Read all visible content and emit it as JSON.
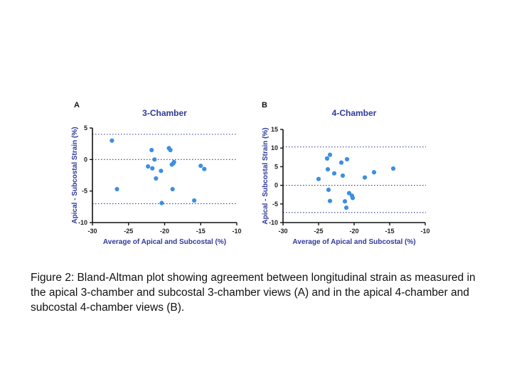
{
  "caption": "Figure 2: Bland-Altman plot showing agreement between longitudinal strain as measured in the apical 3-chamber and subcostal 3-chamber views (A) and in the apical 4-chamber and subcostal 4-chamber views (B).",
  "colors": {
    "points": "#3d8fe0",
    "title": "#2f3a9a",
    "axis": "#111111"
  },
  "chart_data": [
    {
      "type": "scatter",
      "panel": "A",
      "title": "3-Chamber",
      "xlabel": "Average of Apical and Subcostal (%)",
      "ylabel": "Apical - Subcostal Strain (%)",
      "xlim": [
        -30,
        -10
      ],
      "ylim": [
        -10,
        5
      ],
      "xticks": [
        -30,
        -25,
        -20,
        -15,
        -10
      ],
      "yticks": [
        -10,
        -5,
        0,
        5
      ],
      "reference_lines": [
        4.0,
        0.0,
        -7.0
      ],
      "grid": false,
      "points": [
        {
          "x": -27.3,
          "y": 3.0
        },
        {
          "x": -26.6,
          "y": -4.7
        },
        {
          "x": -22.3,
          "y": -1.1
        },
        {
          "x": -21.8,
          "y": 1.5
        },
        {
          "x": -21.7,
          "y": -1.4
        },
        {
          "x": -21.4,
          "y": 0.0
        },
        {
          "x": -21.2,
          "y": -3.0
        },
        {
          "x": -20.5,
          "y": -1.8
        },
        {
          "x": -20.4,
          "y": -6.9
        },
        {
          "x": -19.4,
          "y": 1.8
        },
        {
          "x": -19.2,
          "y": 1.5
        },
        {
          "x": -19.0,
          "y": -0.8
        },
        {
          "x": -18.9,
          "y": -4.7
        },
        {
          "x": -18.8,
          "y": -0.6
        },
        {
          "x": -18.7,
          "y": -0.4
        },
        {
          "x": -15.9,
          "y": -6.5
        },
        {
          "x": -15.0,
          "y": -1.0
        },
        {
          "x": -14.5,
          "y": -1.5
        }
      ]
    },
    {
      "type": "scatter",
      "panel": "B",
      "title": "4-Chamber",
      "xlabel": "Average of Apical and Subcostal (%)",
      "ylabel": "Apical - Subcostal Strain (%)",
      "xlim": [
        -30,
        -10
      ],
      "ylim": [
        -10,
        15
      ],
      "xticks": [
        -30,
        -25,
        -20,
        -15,
        -10
      ],
      "yticks": [
        -10,
        -5,
        0,
        5,
        10,
        15
      ],
      "reference_lines": [
        10.3,
        0.0,
        -7.3
      ],
      "grid": false,
      "points": [
        {
          "x": -25.0,
          "y": 1.7
        },
        {
          "x": -23.8,
          "y": 7.2
        },
        {
          "x": -23.7,
          "y": 4.3
        },
        {
          "x": -23.6,
          "y": -1.2
        },
        {
          "x": -23.4,
          "y": 8.2
        },
        {
          "x": -23.4,
          "y": -4.2
        },
        {
          "x": -22.8,
          "y": 3.2
        },
        {
          "x": -21.8,
          "y": 6.1
        },
        {
          "x": -21.6,
          "y": 2.6
        },
        {
          "x": -21.3,
          "y": -4.3
        },
        {
          "x": -21.1,
          "y": -6.0
        },
        {
          "x": -21.0,
          "y": 7.0
        },
        {
          "x": -20.7,
          "y": -2.1
        },
        {
          "x": -20.3,
          "y": -2.8
        },
        {
          "x": -20.2,
          "y": -3.4
        },
        {
          "x": -18.5,
          "y": 2.1
        },
        {
          "x": -17.2,
          "y": 3.5
        },
        {
          "x": -14.5,
          "y": 4.5
        }
      ]
    }
  ]
}
